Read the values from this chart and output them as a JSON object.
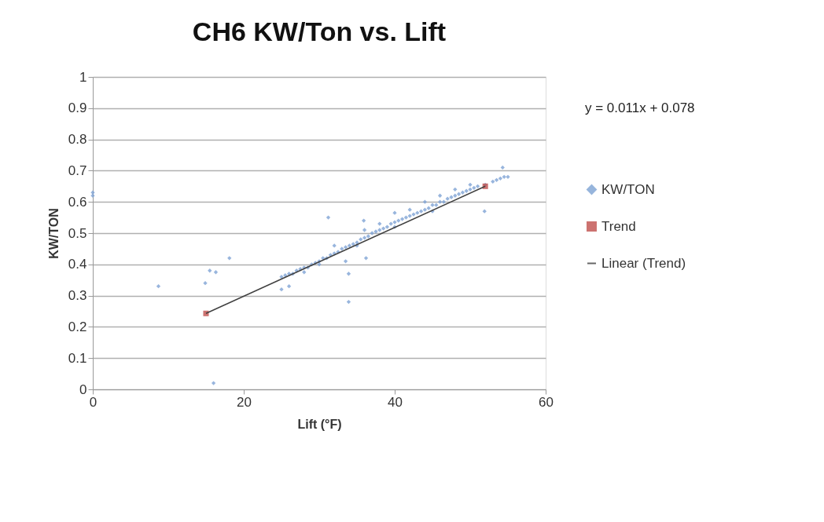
{
  "chart_data": {
    "type": "scatter",
    "title": "CH6 KW/Ton vs. Lift",
    "xlabel": "Lift (°F)",
    "ylabel": "KW/TON",
    "xlim": [
      0,
      60
    ],
    "xticks": [
      0,
      20,
      40,
      60
    ],
    "ylim": [
      0,
      1
    ],
    "yticks": [
      0,
      0.1,
      0.2,
      0.3,
      0.4,
      0.5,
      0.6,
      0.7,
      0.8,
      0.9,
      1
    ],
    "grid": "y",
    "legend": "right",
    "line_style": "solid",
    "annotations": [
      "y = 0.011x + 0.078"
    ],
    "series": [
      {
        "name": "KW/TON",
        "type": "scatter",
        "marker": "diamond",
        "color": "#7ea3d4",
        "x": [
          0,
          0,
          8.7,
          14.9,
          15.5,
          16.3,
          18.1,
          16,
          25,
          26,
          31.2,
          33.9,
          33.9,
          33.5,
          36.2,
          35.9,
          51.9,
          54.3,
          25,
          25.5,
          26,
          26.5,
          27,
          27.5,
          28,
          28.5,
          29,
          29.5,
          30,
          30.5,
          31,
          31.5,
          32,
          32.5,
          33,
          33.5,
          34,
          34.5,
          35,
          35.5,
          36,
          36.5,
          37,
          37.5,
          38,
          38.5,
          39,
          39.5,
          40,
          40.5,
          41,
          41.5,
          42,
          42.5,
          43,
          43.5,
          44,
          44.5,
          45,
          45.5,
          46,
          46.5,
          47,
          47.5,
          48,
          48.5,
          49,
          49.5,
          50,
          50.5,
          51,
          52,
          53,
          53.5,
          54,
          54.5,
          55,
          32,
          36,
          38,
          40,
          42,
          44,
          46,
          48,
          50,
          45,
          40,
          35,
          30,
          28
        ],
        "values": [
          0.63,
          0.62,
          0.33,
          0.34,
          0.38,
          0.375,
          0.42,
          0.02,
          0.32,
          0.33,
          0.55,
          0.28,
          0.37,
          0.41,
          0.42,
          0.54,
          0.57,
          0.71,
          0.36,
          0.365,
          0.37,
          0.37,
          0.38,
          0.385,
          0.39,
          0.39,
          0.4,
          0.405,
          0.41,
          0.42,
          0.42,
          0.43,
          0.435,
          0.44,
          0.45,
          0.455,
          0.46,
          0.465,
          0.47,
          0.48,
          0.485,
          0.49,
          0.5,
          0.505,
          0.51,
          0.515,
          0.52,
          0.53,
          0.535,
          0.54,
          0.545,
          0.55,
          0.555,
          0.56,
          0.565,
          0.57,
          0.575,
          0.58,
          0.59,
          0.59,
          0.6,
          0.6,
          0.61,
          0.615,
          0.62,
          0.625,
          0.63,
          0.635,
          0.64,
          0.645,
          0.65,
          0.655,
          0.665,
          0.67,
          0.675,
          0.68,
          0.68,
          0.46,
          0.51,
          0.53,
          0.565,
          0.575,
          0.6,
          0.62,
          0.64,
          0.655,
          0.57,
          0.52,
          0.46,
          0.4,
          0.375
        ]
      },
      {
        "name": "Trend",
        "type": "scatter",
        "marker": "square",
        "color": "#c0504d",
        "x": [
          15,
          52
        ],
        "values": [
          0.243,
          0.65
        ]
      },
      {
        "name": "Linear (Trend)",
        "type": "line",
        "marker": "none",
        "color": "#404040",
        "x": [
          15,
          52
        ],
        "values": [
          0.243,
          0.65
        ]
      }
    ]
  }
}
